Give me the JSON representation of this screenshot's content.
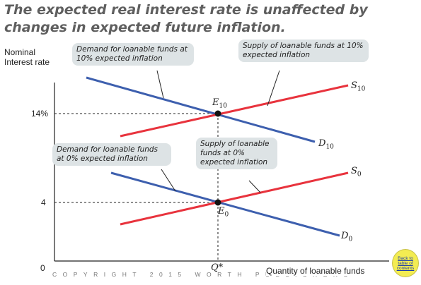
{
  "title": "The expected real interest rate is unaffected by changes in expected future inflation.",
  "y_axis_label": "Nominal Interest rate",
  "x_axis_label": "Quantity of loanable funds",
  "origin_label": "0",
  "y_ticks": {
    "high": "14%",
    "low": "4"
  },
  "x_tick": "Q*",
  "callouts": {
    "demand_10": "Demand for loanable funds at 10% expected inflation",
    "supply_10": "Supply of loanable funds at 10% expected inflation",
    "demand_0": "Demand for loanable funds at 0% expected inflation",
    "supply_0": "Supply of loanable funds at 0% expected inflation"
  },
  "curve_labels": {
    "s10": {
      "base": "S",
      "sub": "10"
    },
    "d10": {
      "base": "D",
      "sub": "10"
    },
    "s0": {
      "base": "S",
      "sub": "0"
    },
    "d0": {
      "base": "D",
      "sub": "0"
    },
    "e10": {
      "base": "E",
      "sub": "10"
    },
    "e0": {
      "base": "E",
      "sub": "0"
    }
  },
  "copyright": "COPYRIGHT 2015 WORTH PUBLISHERS",
  "back_link": "Back to table of contents",
  "colors": {
    "demand": "#3d5fae",
    "supply": "#e8333d",
    "callout_bg": "#dde3e5"
  }
}
